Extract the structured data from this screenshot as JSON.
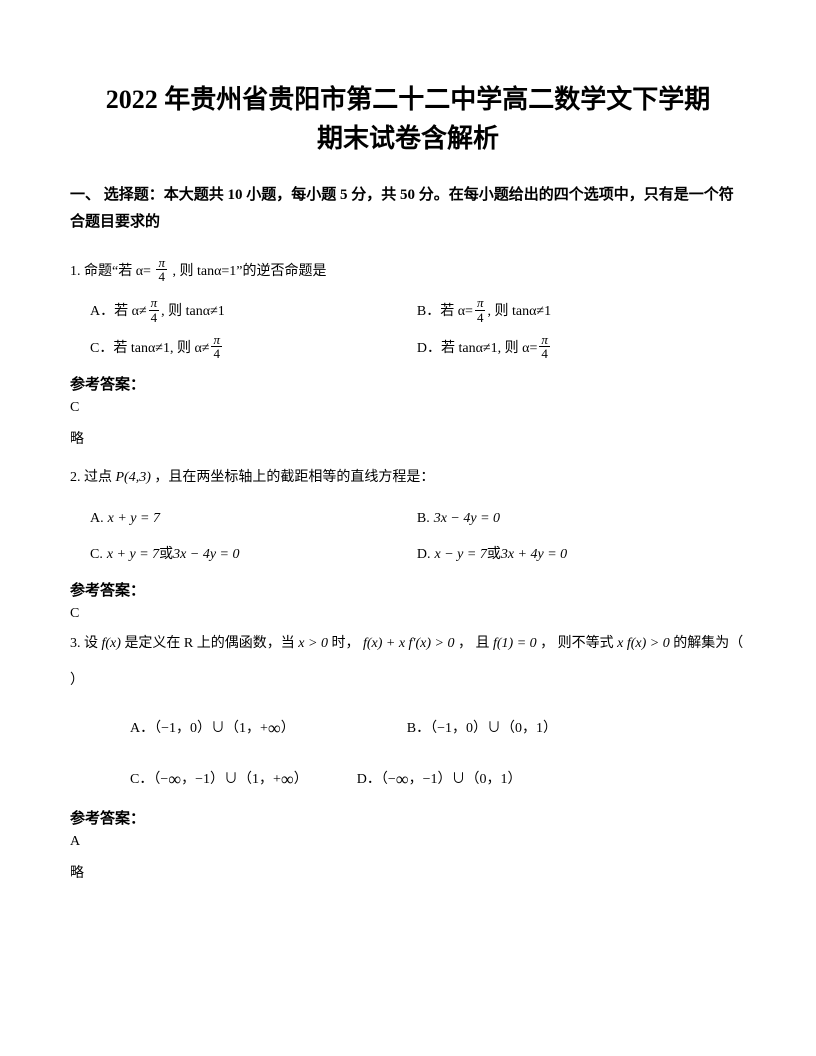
{
  "title_line1": "2022 年贵州省贵阳市第二十二中学高二数学文下学期",
  "title_line2": "期末试卷含解析",
  "section1": "一、 选择题：本大题共 10 小题，每小题 5 分，共 50 分。在每小题给出的四个选项中，只有是一个符合题目要求的",
  "q1": {
    "stem_a": "1. 命题“若 α=",
    "stem_b": ", 则 tanα=1”的逆否命题是",
    "A_pre": "A．若 α≠",
    "A_post": ", 则 tanα≠1",
    "B_pre": "B．若 α=",
    "B_post": ", 则 tanα≠1",
    "C_pre": "C．若 tanα≠1, 则 α≠",
    "D_pre": "D．若 tanα≠1, 则 α=",
    "ans_label": "参考答案：",
    "ans": "C",
    "note": "略"
  },
  "q2": {
    "stem_a": "2. 过点 ",
    "point": "P(4,3)",
    "stem_b": " ，且在两坐标轴上的截距相等的直线方程是：",
    "A": "A.",
    "A_eq": "x + y = 7",
    "B": "B.",
    "B_eq": "3x − 4y = 0",
    "C": "C.",
    "C_eq1": "x + y = 7",
    "C_or": " 或 ",
    "C_eq2": "3x − 4y = 0",
    "D": "D.",
    "D_eq1": "x − y = 7",
    "D_or": " 或 ",
    "D_eq2": "3x + 4y = 0",
    "ans_label": "参考答案：",
    "ans": "C"
  },
  "q3": {
    "stem_a": "3. 设 ",
    "fx": "f(x)",
    "stem_b": " 是定义在 R 上的偶函数，当 ",
    "cond1": "x > 0",
    "stem_c": " 时，",
    "cond2": "f(x) + x f′(x) > 0",
    "stem_d": "， 且 ",
    "cond3": "f(1) = 0",
    "stem_e": "， 则不等式 ",
    "ineq": "x f(x) > 0",
    "stem_f": " 的解集为（  ）",
    "A": "A．（−1，0）∪（1，+",
    "A_end": "）",
    "B": "B．（−1，0）∪（0，1）",
    "C": "C．（−",
    "C_mid": "，−1）∪（1，+",
    "C_end": "）",
    "D": "D．（−",
    "D_mid": "，−1）∪（0，1）",
    "ans_label": "参考答案：",
    "ans": "A",
    "note": "略"
  },
  "frac": {
    "num": "π",
    "den": "4"
  },
  "infinity": "∞"
}
